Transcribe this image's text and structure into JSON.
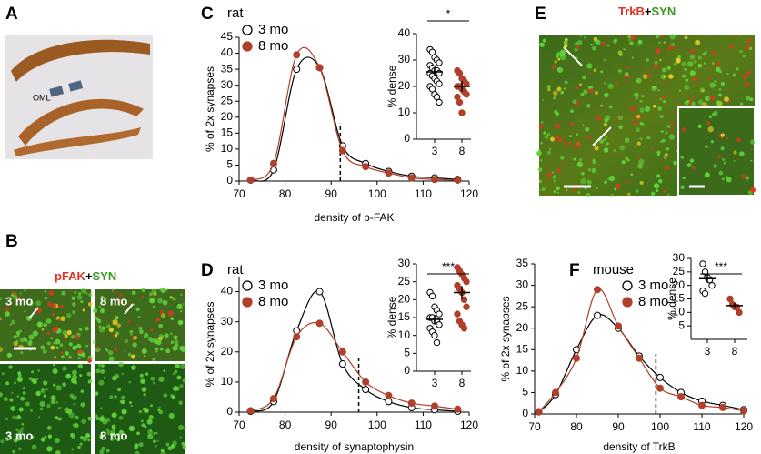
{
  "panels": {
    "A": {
      "label": "A",
      "annotation": "OML"
    },
    "B": {
      "label": "B",
      "stain": [
        "pFAK",
        "+",
        "SYN"
      ],
      "image_labels": [
        "3 mo",
        "8 mo",
        "3 mo",
        "8 mo"
      ]
    },
    "C": {
      "label": "C"
    },
    "D": {
      "label": "D"
    },
    "E": {
      "label": "E",
      "stain": [
        "TrkB",
        "+",
        "SYN"
      ]
    },
    "F": {
      "label": "F"
    }
  },
  "chart_data": [
    {
      "type": "line",
      "title": "rat",
      "x_label": "density of p-FAK",
      "y_label": "% of 2x synapses",
      "x": [
        72.5,
        77.5,
        82.5,
        87.5,
        92.5,
        97.5,
        102.5,
        107.5,
        112.5,
        117.5
      ],
      "series": [
        {
          "name": "3 mo",
          "color": "#000000",
          "marker_fill": "#ffffff",
          "values": [
            0.3,
            3.5,
            35,
            35.5,
            11,
            5.5,
            3,
            1.5,
            1,
            0.5
          ]
        },
        {
          "name": "8 mo",
          "color": "#b0402a",
          "marker_fill": "#b0402a",
          "values": [
            0.3,
            5.5,
            39.5,
            35.5,
            9.5,
            4.5,
            2.5,
            1,
            0.5,
            0.3
          ]
        }
      ],
      "threshold_x": 92,
      "xlim": [
        70,
        120
      ],
      "xticks": [
        70,
        80,
        90,
        100,
        110,
        120
      ],
      "ylim": [
        0,
        45
      ],
      "yticks": [
        0,
        5,
        10,
        15,
        20,
        25,
        30,
        35,
        40,
        45
      ]
    },
    {
      "type": "dotplot",
      "y_label": "% dense",
      "categories": [
        "3",
        "8"
      ],
      "colors": [
        "#ffffff",
        "#b0402a"
      ],
      "values": [
        [
          34,
          33,
          31,
          30,
          29,
          28,
          27,
          26,
          26,
          25,
          25,
          24,
          23,
          22,
          21,
          20,
          19,
          17,
          16,
          14
        ],
        [
          26,
          25,
          23,
          22,
          21,
          20,
          20,
          19,
          18,
          17,
          16,
          14,
          10
        ]
      ],
      "means": [
        25.5,
        20
      ],
      "errors": [
        1.5,
        2
      ],
      "annotation": "*",
      "ylim": [
        0,
        40
      ],
      "yticks": [
        0,
        10,
        20,
        30,
        40
      ]
    },
    {
      "type": "line",
      "title": "rat",
      "x_label": "density of synaptophysin",
      "y_label": "% of 2x synapses",
      "x": [
        72.5,
        77.5,
        82.5,
        87.5,
        92.5,
        97.5,
        102.5,
        107.5,
        112.5,
        117.5
      ],
      "series": [
        {
          "name": "3 mo",
          "color": "#000000",
          "marker_fill": "#ffffff",
          "values": [
            0.3,
            3.5,
            27,
            40,
            16,
            7.5,
            3.5,
            1.5,
            0.8,
            0.3
          ]
        },
        {
          "name": "8 mo",
          "color": "#b0402a",
          "marker_fill": "#b0402a",
          "values": [
            0.5,
            4.5,
            25,
            29.5,
            20,
            10,
            5.5,
            3,
            2,
            1
          ]
        }
      ],
      "threshold_x": 96,
      "xlim": [
        70,
        120
      ],
      "xticks": [
        70,
        80,
        90,
        100,
        110,
        120
      ],
      "ylim": [
        0,
        45
      ],
      "yticks": [
        0,
        10,
        20,
        30,
        40
      ]
    },
    {
      "type": "dotplot",
      "y_label": "% dense",
      "categories": [
        "3",
        "8"
      ],
      "colors": [
        "#ffffff",
        "#b0402a"
      ],
      "values": [
        [
          22,
          21,
          18,
          17,
          16,
          15,
          15,
          14,
          14,
          13,
          12,
          11,
          10,
          8
        ],
        [
          29,
          28,
          27,
          26,
          25,
          24,
          23,
          22,
          20,
          18,
          16,
          14,
          13,
          12
        ]
      ],
      "means": [
        14.5,
        22
      ],
      "errors": [
        1.2,
        1.8
      ],
      "annotation": "***",
      "ylim": [
        0,
        30
      ],
      "yticks": [
        0,
        5,
        10,
        15,
        20,
        25,
        30
      ]
    },
    {
      "type": "line",
      "title": "mouse",
      "x_label": "density of TrkB",
      "y_label": "% of 2x synapses",
      "x": [
        71,
        75,
        80,
        85,
        90,
        95,
        100,
        105,
        110,
        115,
        120
      ],
      "series": [
        {
          "name": "3 mo",
          "color": "#000000",
          "marker_fill": "#ffffff",
          "values": [
            0.5,
            4.5,
            15,
            23,
            20,
            13.5,
            8.5,
            5,
            3,
            2,
            1
          ]
        },
        {
          "name": "8 mo",
          "color": "#b0402a",
          "marker_fill": "#b0402a",
          "values": [
            0.5,
            5,
            13,
            29,
            20.5,
            13,
            6,
            4,
            2,
            1.5,
            0.7
          ]
        }
      ],
      "threshold_x": 99,
      "xlim": [
        70,
        120
      ],
      "xticks": [
        70,
        80,
        90,
        100,
        110,
        120
      ],
      "ylim": [
        0,
        35
      ],
      "yticks": [
        0,
        5,
        10,
        15,
        20,
        25,
        30,
        35
      ]
    },
    {
      "type": "dotplot",
      "y_label": "% dense",
      "categories": [
        "3",
        "8"
      ],
      "colors": [
        "#ffffff",
        "#b0402a"
      ],
      "values": [
        [
          28,
          25,
          23,
          22,
          20,
          18,
          17
        ],
        [
          15,
          13,
          12,
          12,
          10
        ]
      ],
      "means": [
        22.5,
        12.5
      ],
      "errors": [
        1.5,
        1
      ],
      "annotation": "***",
      "ylim": [
        0,
        30
      ],
      "yticks": [
        5,
        10,
        15,
        20,
        25,
        30
      ]
    }
  ]
}
